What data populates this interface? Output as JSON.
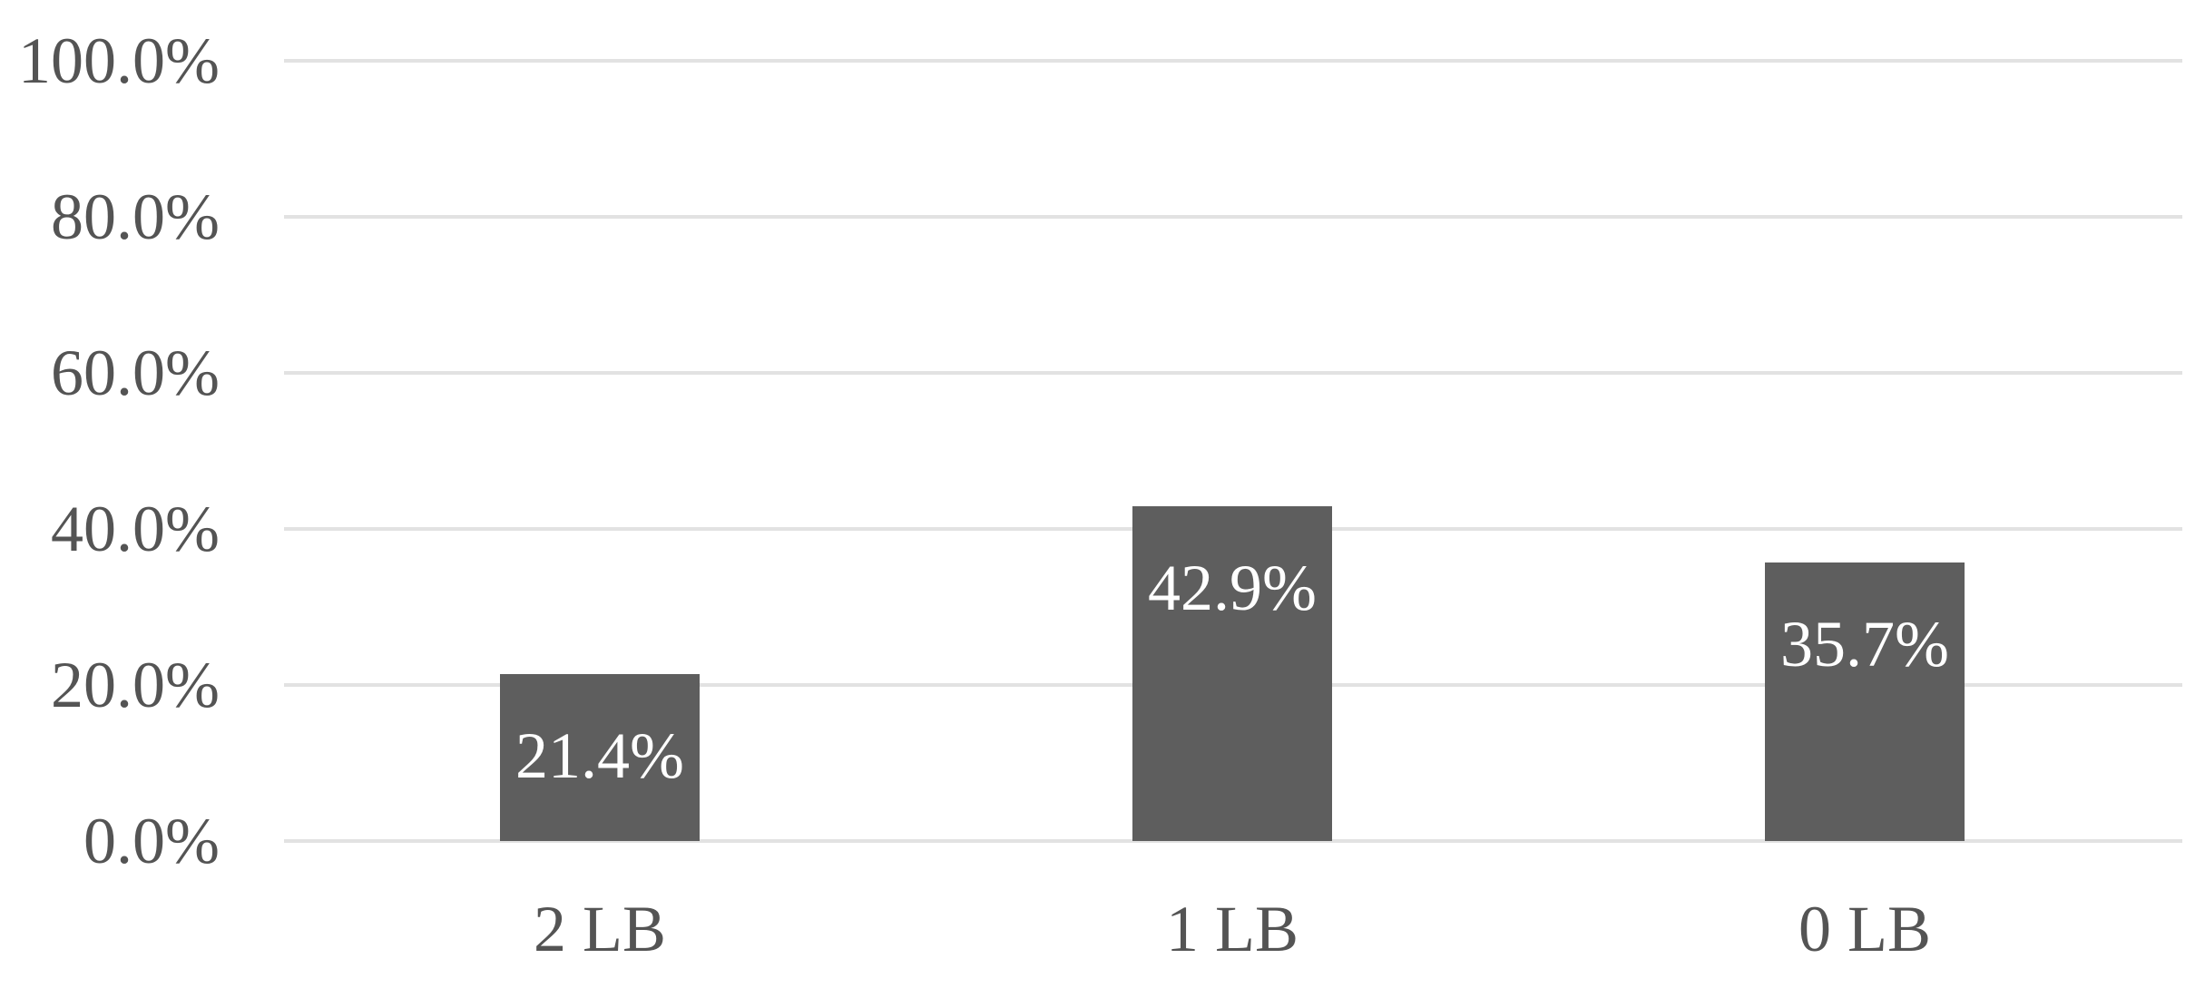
{
  "chart_data": {
    "type": "bar",
    "title": "",
    "xlabel": "",
    "ylabel": "",
    "categories": [
      "2 LB",
      "1 LB",
      "0 LB"
    ],
    "values": [
      21.4,
      42.9,
      35.7
    ],
    "value_labels": [
      "21.4%",
      "42.9%",
      "35.7%"
    ],
    "ylim": [
      0,
      100
    ],
    "ytick_labels": [
      "100.0%",
      "80.0%",
      "60.0%",
      "40.0%",
      "20.0%",
      "0.0%"
    ],
    "grid": true,
    "legend_position": "none",
    "colors": {
      "bar": "#5e5e5e",
      "gridline": "#e2e2e2",
      "axis_text": "#545454",
      "data_label_text": "#ffffff",
      "background": "#ffffff"
    }
  }
}
